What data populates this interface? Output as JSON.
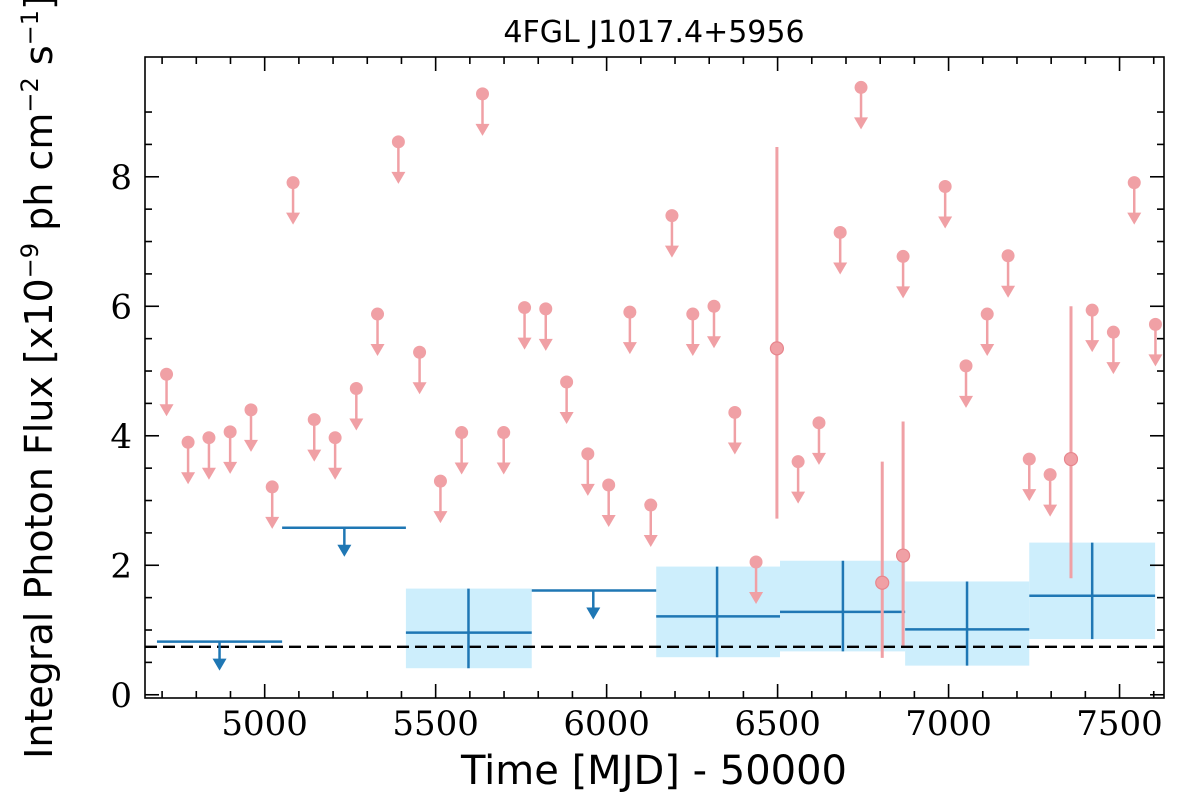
{
  "chart_data": {
    "type": "scatter",
    "title": "4FGL J1017.4+5956",
    "xlabel": "Time [MJD] - 50000",
    "ylabel": "Integral Photon Flux [x10",
    "ylabel_exp": "−9",
    "ylabel_mid": " ph cm",
    "ylabel_exp2": "−2",
    "ylabel_end": " s",
    "ylabel_exp3": "−1",
    "ylabel_close": "]",
    "xlim": [
      4650,
      7630
    ],
    "ylim": [
      -0.05,
      9.85
    ],
    "xticks": [
      5000,
      5500,
      6000,
      6500,
      7000,
      7500
    ],
    "yticks": [
      0,
      2,
      4,
      6,
      8
    ],
    "xtick_labels": [
      "5000",
      "5500",
      "6000",
      "6500",
      "7000",
      "7500"
    ],
    "ytick_labels": [
      "0",
      "2",
      "4",
      "6",
      "8"
    ],
    "reference_level": 0.74,
    "colors": {
      "short_bins": "#f0a0a5",
      "short_bins_edge": "#e7868d",
      "long_bins": "#1f77b4",
      "long_bins_band": "#cdeefc",
      "reference_line": "#000000"
    },
    "series": [
      {
        "type": "upper_limits",
        "x": [
          4713,
          4776,
          4837,
          4899,
          4960,
          5022,
          5083,
          5145,
          5206,
          5268,
          5330,
          5391,
          5453,
          5514,
          5576,
          5637,
          5699,
          5760,
          5822,
          5883,
          5945,
          6006,
          6068,
          6129,
          6191,
          6252,
          6314,
          6375,
          6437,
          6560,
          6621,
          6683,
          6744,
          6867,
          6990,
          7051,
          7113,
          7174,
          7236,
          7297,
          7420,
          7482,
          7543,
          7605
        ],
        "y": [
          4.95,
          3.9,
          3.97,
          4.06,
          4.4,
          3.21,
          7.91,
          4.25,
          3.97,
          4.73,
          5.88,
          8.54,
          5.29,
          3.3,
          4.05,
          9.28,
          4.05,
          5.98,
          5.96,
          4.83,
          3.72,
          3.24,
          5.91,
          2.93,
          7.4,
          5.88,
          6.0,
          4.36,
          2.05,
          3.6,
          4.2,
          7.14,
          9.38,
          6.77,
          7.85,
          5.08,
          5.88,
          6.78,
          3.64,
          3.4,
          5.94,
          5.6,
          7.91,
          5.72
        ]
      },
      {
        "type": "detections",
        "x": [
          6498,
          6806,
          6867,
          7358
        ],
        "y": [
          5.35,
          1.73,
          2.15,
          3.64
        ],
        "y_low": [
          2.72,
          0.57,
          0.76,
          1.8
        ],
        "y_high": [
          8.46,
          3.6,
          4.22,
          6.0
        ]
      },
      {
        "type": "long_upper_limits",
        "x": [
          4868,
          5233,
          5961
        ],
        "x_low": [
          4685,
          5051,
          5781
        ],
        "x_high": [
          5051,
          5413,
          6145
        ],
        "y": [
          0.82,
          2.58,
          1.61
        ]
      },
      {
        "type": "long_detections",
        "x": [
          5596,
          6323,
          6691,
          7054,
          7420
        ],
        "x_low": [
          5413,
          6145,
          6507,
          6873,
          7236
        ],
        "x_high": [
          5781,
          6507,
          6873,
          7236,
          7604
        ],
        "y": [
          0.96,
          1.21,
          1.28,
          1.01,
          1.53
        ],
        "y_low": [
          0.41,
          0.58,
          0.67,
          0.45,
          0.86
        ],
        "y_high": [
          1.64,
          1.98,
          2.07,
          1.75,
          2.35
        ]
      }
    ]
  }
}
